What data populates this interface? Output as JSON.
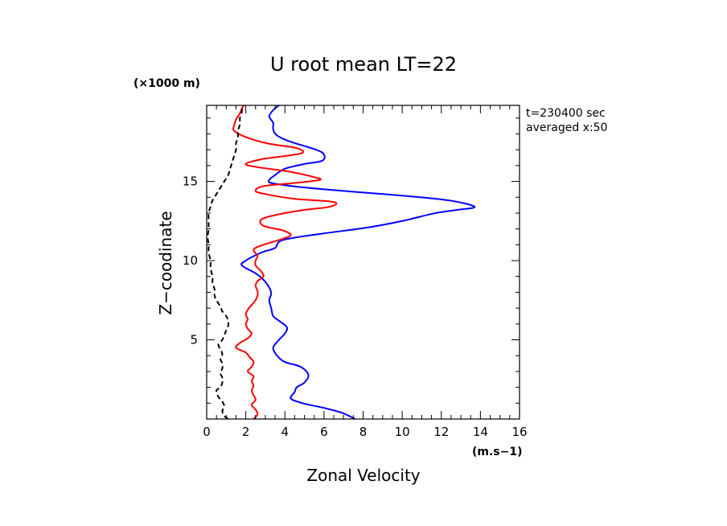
{
  "chart_data": {
    "type": "line",
    "title": "U root mean LT=22",
    "xlabel": "Zonal Velocity",
    "ylabel": "Z−coodinate",
    "x_unit": "(m.s−1)",
    "y_unit": "(×1000 m)",
    "xlim": [
      0,
      16
    ],
    "ylim": [
      0,
      19.8
    ],
    "x_ticks": [
      "0",
      "2",
      "4",
      "6",
      "8",
      "10",
      "12",
      "14",
      "16"
    ],
    "x_tick_values": [
      0,
      2,
      4,
      6,
      8,
      10,
      12,
      14,
      16
    ],
    "y_ticks": [
      "5",
      "10",
      "15"
    ],
    "y_tick_values": [
      5,
      10,
      15
    ],
    "annotation_lines": [
      "t=230400 sec",
      "averaged   x:50"
    ],
    "series": [
      {
        "color": "#0000ff",
        "style": "solid",
        "points": [
          [
            7.6,
            0.0
          ],
          [
            6.9,
            0.4
          ],
          [
            6.0,
            0.7
          ],
          [
            4.9,
            1.0
          ],
          [
            4.3,
            1.3
          ],
          [
            4.5,
            1.7
          ],
          [
            4.6,
            2.0
          ],
          [
            5.0,
            2.3
          ],
          [
            5.2,
            2.8
          ],
          [
            4.8,
            3.3
          ],
          [
            4.0,
            3.6
          ],
          [
            3.6,
            4.0
          ],
          [
            3.4,
            4.5
          ],
          [
            3.7,
            5.0
          ],
          [
            4.0,
            5.4
          ],
          [
            4.1,
            5.8
          ],
          [
            3.7,
            6.2
          ],
          [
            3.4,
            6.5
          ],
          [
            3.3,
            7.0
          ],
          [
            3.2,
            7.5
          ],
          [
            3.3,
            7.9
          ],
          [
            3.2,
            8.3
          ],
          [
            2.9,
            8.8
          ],
          [
            2.5,
            9.2
          ],
          [
            1.8,
            9.7
          ],
          [
            2.0,
            10.0
          ],
          [
            2.6,
            10.4
          ],
          [
            3.0,
            10.6
          ],
          [
            3.5,
            10.8
          ],
          [
            3.9,
            11.3
          ],
          [
            5.9,
            11.7
          ],
          [
            8.3,
            12.1
          ],
          [
            10.0,
            12.5
          ],
          [
            11.7,
            13.0
          ],
          [
            12.8,
            13.2
          ],
          [
            13.7,
            13.4
          ],
          [
            12.4,
            13.8
          ],
          [
            10.0,
            14.1
          ],
          [
            8.0,
            14.3
          ],
          [
            6.0,
            14.5
          ],
          [
            4.4,
            14.7
          ],
          [
            3.3,
            14.9
          ],
          [
            3.2,
            15.1
          ],
          [
            3.5,
            15.4
          ],
          [
            4.0,
            15.8
          ],
          [
            5.0,
            16.1
          ],
          [
            5.9,
            16.3
          ],
          [
            6.0,
            16.7
          ],
          [
            5.6,
            17.0
          ],
          [
            4.3,
            17.5
          ],
          [
            3.6,
            17.9
          ],
          [
            3.4,
            18.3
          ],
          [
            3.4,
            18.7
          ],
          [
            3.2,
            19.1
          ],
          [
            3.4,
            19.5
          ],
          [
            3.7,
            19.8
          ]
        ]
      },
      {
        "color": "#ff0000",
        "style": "solid",
        "points": [
          [
            2.4,
            0.0
          ],
          [
            2.6,
            0.3
          ],
          [
            2.5,
            0.6
          ],
          [
            2.3,
            0.9
          ],
          [
            2.5,
            1.2
          ],
          [
            2.4,
            1.5
          ],
          [
            2.3,
            1.8
          ],
          [
            2.4,
            2.1
          ],
          [
            2.3,
            2.4
          ],
          [
            2.4,
            2.7
          ],
          [
            2.1,
            3.0
          ],
          [
            2.3,
            3.3
          ],
          [
            2.4,
            3.6
          ],
          [
            2.2,
            3.9
          ],
          [
            2.0,
            4.2
          ],
          [
            1.5,
            4.5
          ],
          [
            1.7,
            4.8
          ],
          [
            2.1,
            5.1
          ],
          [
            2.3,
            5.4
          ],
          [
            2.1,
            5.7
          ],
          [
            2.0,
            6.0
          ],
          [
            2.1,
            6.3
          ],
          [
            2.0,
            6.6
          ],
          [
            2.1,
            6.9
          ],
          [
            2.3,
            7.2
          ],
          [
            2.5,
            7.5
          ],
          [
            2.6,
            7.8
          ],
          [
            2.6,
            8.1
          ],
          [
            2.5,
            8.4
          ],
          [
            2.6,
            8.7
          ],
          [
            2.9,
            9.0
          ],
          [
            2.8,
            9.3
          ],
          [
            2.5,
            9.7
          ],
          [
            2.5,
            10.0
          ],
          [
            2.6,
            10.3
          ],
          [
            2.4,
            10.7
          ],
          [
            2.9,
            11.0
          ],
          [
            3.7,
            11.3
          ],
          [
            4.3,
            11.6
          ],
          [
            3.9,
            11.9
          ],
          [
            2.9,
            12.2
          ],
          [
            2.8,
            12.6
          ],
          [
            3.6,
            12.9
          ],
          [
            5.0,
            13.2
          ],
          [
            6.3,
            13.4
          ],
          [
            6.5,
            13.7
          ],
          [
            4.5,
            13.9
          ],
          [
            3.0,
            14.2
          ],
          [
            2.5,
            14.4
          ],
          [
            2.9,
            14.7
          ],
          [
            4.5,
            14.9
          ],
          [
            5.8,
            15.1
          ],
          [
            5.4,
            15.3
          ],
          [
            4.3,
            15.6
          ],
          [
            2.6,
            15.9
          ],
          [
            2.0,
            16.1
          ],
          [
            2.8,
            16.4
          ],
          [
            4.0,
            16.6
          ],
          [
            4.9,
            16.8
          ],
          [
            4.6,
            17.1
          ],
          [
            3.1,
            17.4
          ],
          [
            2.0,
            17.8
          ],
          [
            1.4,
            18.2
          ],
          [
            1.4,
            18.5
          ],
          [
            1.5,
            18.9
          ],
          [
            1.7,
            19.3
          ],
          [
            1.8,
            19.6
          ],
          [
            1.9,
            19.8
          ]
        ]
      },
      {
        "color": "#000000",
        "style": "dashed",
        "points": [
          [
            1.1,
            0.0
          ],
          [
            0.9,
            0.2
          ],
          [
            0.8,
            0.5
          ],
          [
            0.9,
            0.8
          ],
          [
            0.8,
            1.1
          ],
          [
            0.6,
            1.4
          ],
          [
            0.5,
            1.8
          ],
          [
            0.7,
            2.0
          ],
          [
            0.8,
            2.3
          ],
          [
            0.8,
            2.6
          ],
          [
            0.7,
            2.9
          ],
          [
            0.8,
            3.2
          ],
          [
            0.8,
            3.5
          ],
          [
            0.7,
            3.8
          ],
          [
            0.8,
            4.1
          ],
          [
            0.7,
            4.4
          ],
          [
            0.6,
            4.7
          ],
          [
            0.8,
            5.0
          ],
          [
            0.9,
            5.3
          ],
          [
            1.0,
            5.6
          ],
          [
            1.1,
            5.9
          ],
          [
            1.1,
            6.2
          ],
          [
            1.0,
            6.5
          ],
          [
            0.8,
            6.8
          ],
          [
            0.7,
            7.1
          ],
          [
            0.5,
            7.5
          ],
          [
            0.4,
            7.8
          ],
          [
            0.4,
            8.2
          ],
          [
            0.3,
            8.6
          ],
          [
            0.3,
            9.0
          ],
          [
            0.2,
            9.5
          ],
          [
            0.2,
            10.0
          ],
          [
            0.1,
            10.5
          ],
          [
            0.1,
            11.0
          ],
          [
            0.05,
            11.5
          ],
          [
            0.1,
            12.0
          ],
          [
            0.1,
            12.5
          ],
          [
            0.1,
            13.0
          ],
          [
            0.2,
            13.4
          ],
          [
            0.3,
            13.8
          ],
          [
            0.5,
            14.2
          ],
          [
            0.7,
            14.6
          ],
          [
            0.9,
            15.0
          ],
          [
            1.1,
            15.4
          ],
          [
            1.2,
            15.8
          ],
          [
            1.3,
            16.2
          ],
          [
            1.4,
            16.6
          ],
          [
            1.5,
            17.0
          ],
          [
            1.5,
            17.4
          ],
          [
            1.6,
            17.8
          ],
          [
            1.6,
            18.2
          ],
          [
            1.7,
            18.6
          ],
          [
            1.7,
            19.0
          ],
          [
            1.8,
            19.4
          ],
          [
            1.8,
            19.8
          ]
        ]
      }
    ]
  }
}
